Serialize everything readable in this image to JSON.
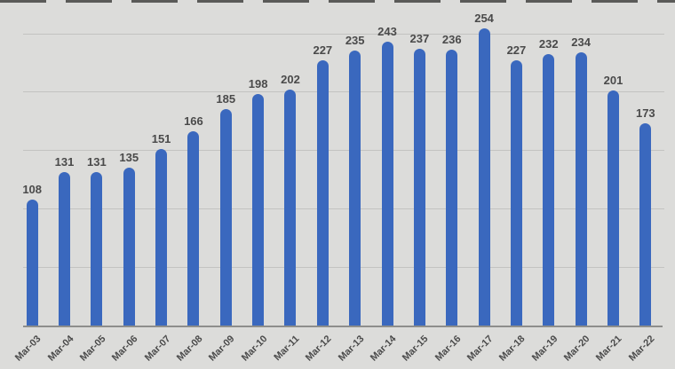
{
  "chart_data": {
    "type": "bar",
    "title": "",
    "xlabel": "",
    "ylabel": "",
    "categories": [
      "Mar-03",
      "Mar-04",
      "Mar-05",
      "Mar-06",
      "Mar-07",
      "Mar-08",
      "Mar-09",
      "Mar-10",
      "Mar-11",
      "Mar-12",
      "Mar-13",
      "Mar-14",
      "Mar-15",
      "Mar-16",
      "Mar-17",
      "Mar-18",
      "Mar-19",
      "Mar-20",
      "Mar-21",
      "Mar-22"
    ],
    "values": [
      108,
      131,
      131,
      135,
      151,
      166,
      185,
      198,
      202,
      227,
      235,
      243,
      237,
      236,
      254,
      227,
      232,
      234,
      201,
      173
    ],
    "ylim": [
      0,
      260
    ],
    "gridline_values": [
      50,
      100,
      150,
      200,
      250
    ],
    "grid": true,
    "legend": false,
    "data_labels": true,
    "x_label_rotation_deg": -45
  },
  "colors": {
    "background": "#dcdcda",
    "bar": "#3a68be",
    "gridline": "#c3c3c1",
    "axis_line": "#8e8e8c",
    "label_text": "#4a4a4a",
    "top_dash": "#5a5a58"
  }
}
